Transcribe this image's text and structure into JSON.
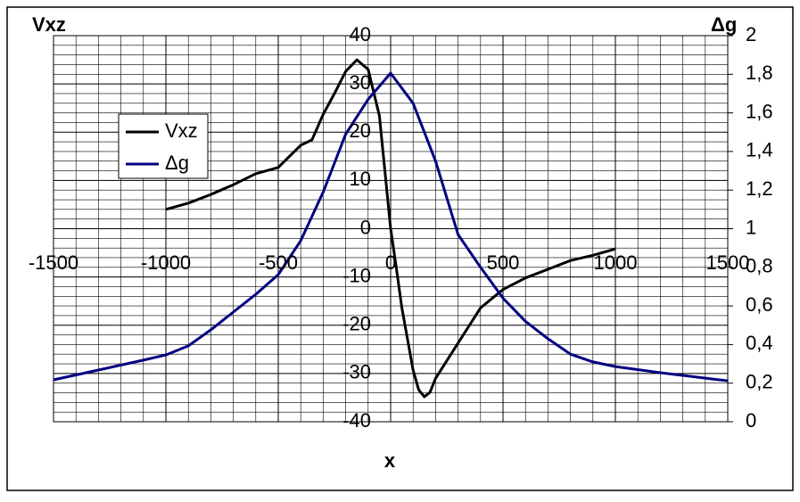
{
  "chart_data": {
    "type": "line",
    "y_title": "Vxz",
    "y2_title": "Δg",
    "x_title": "x",
    "xlim": [
      -1500,
      1500
    ],
    "xticks": [
      -1500,
      -1000,
      -500,
      0,
      500,
      1000,
      1500
    ],
    "ylim": [
      -40,
      40
    ],
    "yticks": [
      -40,
      -30,
      -20,
      -10,
      0,
      10,
      20,
      30,
      40
    ],
    "y2lim": [
      0,
      2
    ],
    "y2ticks": [
      0,
      {
        "value": 0.2,
        "label": "0,2"
      },
      {
        "value": 0.4,
        "label": "0,4"
      },
      {
        "value": 0.6,
        "label": "0,6"
      },
      {
        "value": 0.8,
        "label": "0,8"
      },
      1,
      {
        "value": 1.2,
        "label": "1,2"
      },
      {
        "value": 1.4,
        "label": "1,4"
      },
      {
        "value": 1.6,
        "label": "1,6"
      },
      {
        "value": 1.8,
        "label": "1,8"
      },
      2
    ],
    "grid": true,
    "series": [
      {
        "name": "Vxz",
        "color": "#000000",
        "x": [
          -1000,
          -900,
          -800,
          -700,
          -600,
          -500,
          -450,
          -400,
          -350,
          -300,
          -250,
          -200,
          -150,
          -100,
          -50,
          0,
          25,
          50,
          100,
          125,
          150,
          175,
          200,
          300,
          400,
          500,
          600,
          700,
          800,
          900,
          1000
        ],
        "values": [
          4.0,
          5.3,
          7.1,
          9.1,
          11.4,
          12.7,
          15,
          17.3,
          18.4,
          23.7,
          28,
          32.6,
          35,
          33,
          23.4,
          0,
          -8,
          -16.4,
          -29.3,
          -33.4,
          -34.8,
          -33.9,
          -31,
          -23.7,
          -16.4,
          -12.6,
          -10.2,
          -8.4,
          -6.6,
          -5.5,
          -4.2
        ]
      },
      {
        "name": "Δg",
        "color": "#000080",
        "axis": "y2",
        "x": [
          -1500,
          -1300,
          -1100,
          -1000,
          -900,
          -800,
          -700,
          -600,
          -500,
          -400,
          -300,
          -200,
          -100,
          0,
          100,
          200,
          300,
          400,
          500,
          600,
          700,
          800,
          900,
          1000,
          1200,
          1500
        ],
        "values": [
          0.217,
          0.268,
          0.319,
          0.346,
          0.393,
          0.476,
          0.568,
          0.66,
          0.762,
          0.938,
          1.19,
          1.49,
          1.67,
          1.806,
          1.65,
          1.35,
          0.97,
          0.8,
          0.64,
          0.52,
          0.43,
          0.35,
          0.31,
          0.286,
          0.254,
          0.212
        ]
      }
    ]
  }
}
